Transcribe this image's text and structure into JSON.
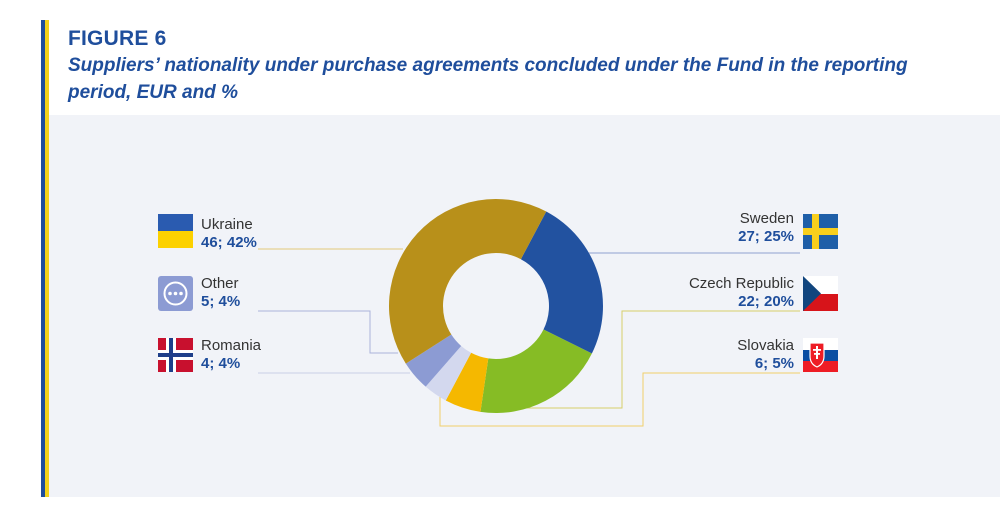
{
  "figure_label": "FIGURE 6",
  "title": "Suppliers’ nationality under purchase agreements concluded under the Fund in the reporting period, EUR and %",
  "colors": {
    "accent_blue": "#1f4e9c",
    "accent_yellow": "#f3d11a",
    "panel": "#f1f3f8"
  },
  "chart_data": {
    "type": "pie",
    "donut": true,
    "title": "Suppliers’ nationality under purchase agreements concluded under the Fund in the reporting period, EUR and %",
    "slices": [
      {
        "label": "Sweden",
        "value": 27,
        "percent": 25,
        "display": "27; 25%",
        "color": "#2252a0",
        "icon": "sweden-flag-icon"
      },
      {
        "label": "Czech Republic",
        "value": 22,
        "percent": 20,
        "display": "22; 20%",
        "color": "#86bc25",
        "icon": "czech-republic-flag-icon"
      },
      {
        "label": "Slovakia",
        "value": 6,
        "percent": 5,
        "display": "6; 5%",
        "color": "#f5b800",
        "icon": "slovakia-flag-icon"
      },
      {
        "label": "Romania",
        "value": 4,
        "percent": 4,
        "display": "4; 4%",
        "color": "#d3d8ee",
        "icon": "norway-flag-icon"
      },
      {
        "label": "Other",
        "value": 5,
        "percent": 4,
        "display": "5; 4%",
        "color": "#8c9bd3",
        "icon": "other-dots-icon"
      },
      {
        "label": "Ukraine",
        "value": 46,
        "percent": 42,
        "display": "46; 42%",
        "color": "#b8901a",
        "icon": "ukraine-flag-icon"
      }
    ]
  }
}
